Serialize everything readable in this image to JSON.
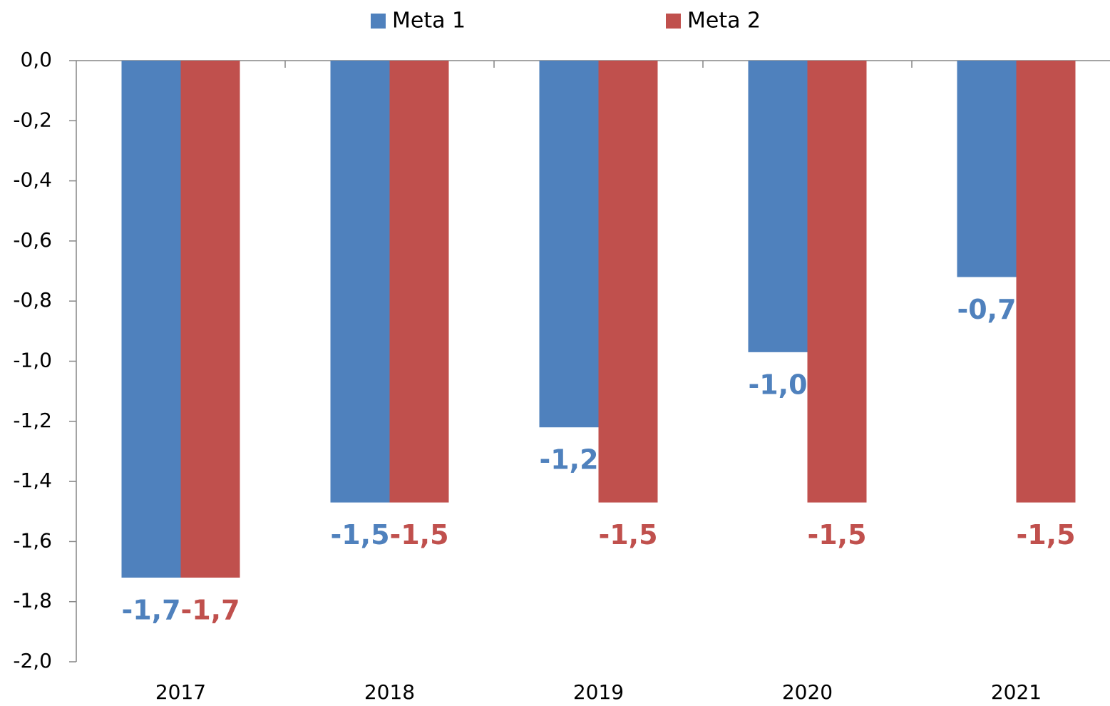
{
  "chart_data": {
    "type": "bar",
    "categories": [
      "2017",
      "2018",
      "2019",
      "2020",
      "2021"
    ],
    "series": [
      {
        "name": "Meta 1",
        "color": "#4f81bd",
        "values": [
          -1.72,
          -1.47,
          -1.22,
          -0.97,
          -0.72
        ],
        "value_labels": [
          "-1,7",
          "-1,5",
          "-1,2",
          "-1,0",
          "-0,7"
        ]
      },
      {
        "name": "Meta 2",
        "color": "#c0504d",
        "values": [
          -1.72,
          -1.47,
          -1.47,
          -1.47,
          -1.47
        ],
        "value_labels": [
          "-1,7",
          "-1,5",
          "-1,5",
          "-1,5",
          "-1,5"
        ]
      }
    ],
    "ylim": [
      -2.0,
      0.0
    ],
    "yticks": [
      {
        "value": 0.0,
        "label": "0,0"
      },
      {
        "value": -0.2,
        "label": "-0,2"
      },
      {
        "value": -0.4,
        "label": "-0,4"
      },
      {
        "value": -0.6,
        "label": "-0,6"
      },
      {
        "value": -0.8,
        "label": "-0,8"
      },
      {
        "value": -1.0,
        "label": "-1,0"
      },
      {
        "value": -1.2,
        "label": "-1,2"
      },
      {
        "value": -1.4,
        "label": "-1,4"
      },
      {
        "value": -1.6,
        "label": "-1,6"
      },
      {
        "value": -1.8,
        "label": "-1,8"
      },
      {
        "value": -2.0,
        "label": "-2,0"
      }
    ],
    "legend": "top"
  }
}
